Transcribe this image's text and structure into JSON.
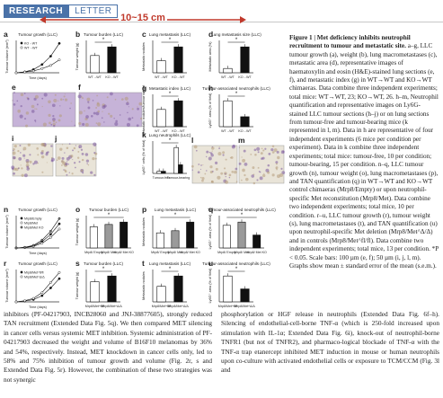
{
  "header": {
    "section": "RESEARCH",
    "type": "LETTER"
  },
  "measure": {
    "label": "10~15 cm",
    "color": "#c0392b"
  },
  "colors": {
    "accent": "#4a72a8",
    "bar_dark": "#111111",
    "bar_grey": "#9a9a9a",
    "tissue": "#c6b3d8",
    "tissue_light": "#e9e4d8"
  },
  "panels": {
    "a": {
      "letter": "a",
      "title": "Tumour growth (LLC)",
      "ylabel": "Tumour volume (mm³)",
      "xlabel": "Time (days)",
      "series": [
        {
          "name": "KO→WT"
        },
        {
          "name": "WT→WT"
        }
      ]
    },
    "b": {
      "letter": "b",
      "title": "Tumour burden (LLC)",
      "ylabel": "Tumour weight (g)",
      "categories": [
        "WT→WT",
        "KO→WT"
      ],
      "sig": "*"
    },
    "c": {
      "letter": "c",
      "title": "Lung metastasis (LLC)",
      "ylabel": "Metastatic nodules",
      "categories": [
        "WT→WT",
        "KO→WT"
      ],
      "sig": "*"
    },
    "d": {
      "letter": "d",
      "title": "Lung metastasis size (LLC)",
      "ylabel": "Metastatic area (%)",
      "categories": [
        "WT→WT",
        "KO→WT"
      ],
      "sig": "*"
    },
    "e": {
      "letter": "e"
    },
    "f": {
      "letter": "f"
    },
    "g": {
      "letter": "g",
      "title": "Metastatic index (LLC)",
      "ylabel": "Metastatic nodules/tumour weight",
      "categories": [
        "WT→WT",
        "KO→WT"
      ],
      "sig": "*"
    },
    "h": {
      "letter": "h",
      "title": "Tumour-associated neutrophils (LLC)",
      "ylabel": "Ly6G⁺ area (% of field)",
      "categories": [
        "WT→WT",
        "KO→WT"
      ],
      "sig": "*"
    },
    "i": {
      "letter": "i"
    },
    "j": {
      "letter": "j"
    },
    "k": {
      "letter": "k",
      "title": "Lung neutrophils (LLC)",
      "ylabel": "Ly6G⁺ cells (% of field)",
      "categories": [
        "Tumour-free",
        "Tumour-bearing"
      ],
      "sig": "*"
    },
    "l": {
      "letter": "l"
    },
    "m": {
      "letter": "m"
    },
    "n": {
      "letter": "n",
      "title": "Tumour growth (LLC)",
      "ylabel": "Tumour volume (mm³)",
      "xlabel": "Time (days)",
      "series": [
        {
          "name": "Mrp8/Empty"
        },
        {
          "name": "Mrp8/Met"
        },
        {
          "name": "Mrp8/Met KO"
        }
      ]
    },
    "o": {
      "letter": "o",
      "title": "Tumour burden (LLC)",
      "ylabel": "Tumour weight (g)",
      "categories": [
        "Mrp8/ Empty",
        "Mrp8/ Met",
        "Mrp8/ Met KO"
      ],
      "sig": "*"
    },
    "p": {
      "letter": "p",
      "title": "Lung metastasis (LLC)",
      "ylabel": "Metastatic nodules",
      "categories": [
        "Mrp8/ Empty",
        "Mrp8/ Met",
        "Mrp8/ Met KO"
      ],
      "sig": "*"
    },
    "q": {
      "letter": "q",
      "title": "Tumour-associated neutrophils (LLC)",
      "ylabel": "Ly6G⁺ area (% of field)",
      "categories": [
        "Mrp8/ Empty",
        "Mrp8/ Met",
        "Mrp8/ Met KO"
      ],
      "sig": "*"
    },
    "r": {
      "letter": "r",
      "title": "Tumour growth (LLC)",
      "ylabel": "Tumour volume (mm³)",
      "xlabel": "Time (days)",
      "series": [
        {
          "name": "Mrp8/Met^fl/fl"
        },
        {
          "name": "Mrp8/Met^Δ/Δ"
        }
      ]
    },
    "s": {
      "letter": "s",
      "title": "Tumour burden (LLC)",
      "ylabel": "Tumour weight (g)",
      "categories": [
        "Mrp8/Met^fl/fl",
        "Mrp8/Met^Δ/Δ"
      ],
      "sig": "*"
    },
    "t": {
      "letter": "t",
      "title": "Lung metastasis (LLC)",
      "ylabel": "Metastatic nodules",
      "categories": [
        "Mrp8/Met^fl/fl",
        "Mrp8/Met^Δ/Δ"
      ],
      "sig": "*"
    },
    "u": {
      "letter": "u",
      "title": "Tumour-associated neutrophils (LLC)",
      "ylabel": "Ly6G⁺ area (% of field)",
      "categories": [
        "Mrp8/Met^fl/fl",
        "Mrp8/Met^Δ/Δ"
      ],
      "sig": "*"
    }
  },
  "chart_data": [
    {
      "panel": "a",
      "type": "line",
      "x": [
        0,
        5,
        10,
        15,
        20,
        25
      ],
      "series": [
        {
          "name": "KO→WT",
          "values": [
            0,
            100,
            350,
            900,
            1800,
            3200
          ]
        },
        {
          "name": "WT→WT",
          "values": [
            0,
            80,
            200,
            450,
            800,
            1400
          ]
        }
      ]
    },
    {
      "panel": "b",
      "type": "bar",
      "categories": [
        "WT→WT",
        "KO→WT"
      ],
      "values": [
        2.0,
        3.0
      ]
    },
    {
      "panel": "c",
      "type": "bar",
      "categories": [
        "WT→WT",
        "KO→WT"
      ],
      "values": [
        3.5,
        7.5
      ]
    },
    {
      "panel": "d",
      "type": "bar",
      "categories": [
        "WT→WT",
        "KO→WT"
      ],
      "values": [
        0.5,
        3.0
      ]
    },
    {
      "panel": "g",
      "type": "bar",
      "categories": [
        "WT→WT",
        "KO→WT"
      ],
      "values": [
        2.0,
        3.0
      ]
    },
    {
      "panel": "h",
      "type": "bar",
      "categories": [
        "WT→WT",
        "KO→WT"
      ],
      "values": [
        2.6,
        1.0
      ]
    },
    {
      "panel": "k",
      "type": "bar",
      "categories": [
        "Tumour-free",
        "Tumour-bearing"
      ],
      "series": [
        {
          "name": "WT",
          "values": [
            0.5,
            6
          ]
        },
        {
          "name": "KO",
          "values": [
            0.5,
            2
          ]
        }
      ]
    },
    {
      "panel": "n",
      "type": "line",
      "x": [
        0,
        5,
        10,
        15,
        20,
        25
      ],
      "series": [
        {
          "name": "Mrp8/Empty",
          "values": [
            0,
            50,
            200,
            600,
            1300,
            2300
          ]
        },
        {
          "name": "Mrp8/Met",
          "values": [
            0,
            40,
            150,
            450,
            1000,
            1800
          ]
        },
        {
          "name": "Mrp8/Met KO",
          "values": [
            0,
            60,
            250,
            750,
            1600,
            2800
          ]
        }
      ]
    },
    {
      "panel": "o",
      "type": "bar",
      "categories": [
        "Mrp8/ Empty",
        "Mrp8/ Met",
        "Mrp8/ Met KO"
      ],
      "values": [
        1.8,
        2.0,
        2.2
      ]
    },
    {
      "panel": "p",
      "type": "bar",
      "categories": [
        "Mrp8/ Empty",
        "Mrp8/ Met",
        "Mrp8/ Met KO"
      ],
      "values": [
        7,
        8,
        12
      ]
    },
    {
      "panel": "q",
      "type": "bar",
      "categories": [
        "Mrp8/ Empty",
        "Mrp8/ Met",
        "Mrp8/ Met KO"
      ],
      "values": [
        3.5,
        4,
        2
      ]
    },
    {
      "panel": "r",
      "type": "line",
      "x": [
        0,
        5,
        10,
        15,
        20,
        25
      ],
      "series": [
        {
          "name": "Mrp8/Met^fl/fl",
          "values": [
            0,
            100,
            300,
            800,
            1800,
            3000
          ]
        },
        {
          "name": "Mrp8/Met^Δ/Δ",
          "values": [
            0,
            150,
            450,
            1200,
            2500,
            3800
          ]
        }
      ]
    },
    {
      "panel": "s",
      "type": "bar",
      "categories": [
        "Mrp8/Met^fl/fl",
        "Mrp8/Met^Δ/Δ"
      ],
      "values": [
        2.8,
        3.6
      ]
    },
    {
      "panel": "t",
      "type": "bar",
      "categories": [
        "Mrp8/Met^fl/fl",
        "Mrp8/Met^Δ/Δ"
      ],
      "values": [
        18,
        30
      ]
    },
    {
      "panel": "u",
      "type": "bar",
      "categories": [
        "Mrp8/Met^fl/fl",
        "Mrp8/Met^Δ/Δ"
      ],
      "values": [
        4,
        2
      ]
    }
  ],
  "caption": {
    "title": "Figure 1 | Met deficiency inhibits neutrophil recruitment to tumour and metastatic site.",
    "text": " a–g, LLC tumour growth (a), weight (b), lung macrometastases (c), metastatic area (d), representative images of haematoxylin and eosin (H&E)-stained lung sections (e, f), and metastatic index (g) in WT→WT and KO→WT chimaeras. Data combine three independent experiments; total mice: WT→WT, 23; KO→WT, 26. h–m, Neutrophil quantification and representative images on Ly6G-stained LLC tumour sections (h–j) or on lung sections from tumour-free and tumour-bearing mice (k represented in l, m). Data in h are representative of four independent experiments (6 mice per condition per experiment). Data in k combine three independent experiments; total mice: tumour-free, 10 per condition; tumour-bearing, 15 per condition. n–q, LLC tumour growth (n), tumour weight (o), lung macrometastases (p), and TAN quantification (q) in WT→WT and KO→WT control chimaeras (Mrp8/Empty) or upon neutrophil-specific Met reconstitution (Mrp8/Met). Data combine two independent experiments; total mice, 10 per condition. r–u, LLC tumour growth (r), tumour weight (s), lung macrometastases (t), and TAN quantification (u) upon neutrophil-specific Met deletion (Mrp8/Met^Δ/Δ) and in controls (Mrp8/Met^fl/fl). Data combine two independent experiments; total mice, 13 per condition. *P < 0.05. Scale bars: 100 µm (e, f); 50 µm (i, j, l, m). Graphs show mean ± standard error of the mean (s.e.m.)."
  },
  "body": {
    "left": "inhibitors (PF-04217903, INCB28060 and JNJ-38877605), strongly reduced TAN recruitment (Extended Data Fig. 5q). We then compared MET silencing in cancer cells versus systemic MET inhibition. Systemic administration of PF-04217903 decreased the weight and volume of B16F10 melanomas by 36% and 54%, respectively. Instead, MET knockdown in cancer cells only, led to 58% and 75% inhibition of tumour growth and volume (Fig. 2r, s and Extended Data Fig. 5r). However, the combination of these two strategies was not synergic",
    "right": "phosphorylation or HGF release in neutrophils (Extended Data Fig. 6f–h). Silencing of endothelial-cell-borne TNF-α (which is 250-fold increased upon stimulation with IL-1α; Extended Data Fig. 6i), knock-out of neutrophil-borne TNFR1 (but not of TNFR2), and pharmaco-logical blockade of TNF-α with the TNF-α trap etanercept inhibited MET induction in mouse or human neutrophils upon co-culture with activated endothelial cells or exposure to TCM/CCM (Fig. 3l and"
  }
}
